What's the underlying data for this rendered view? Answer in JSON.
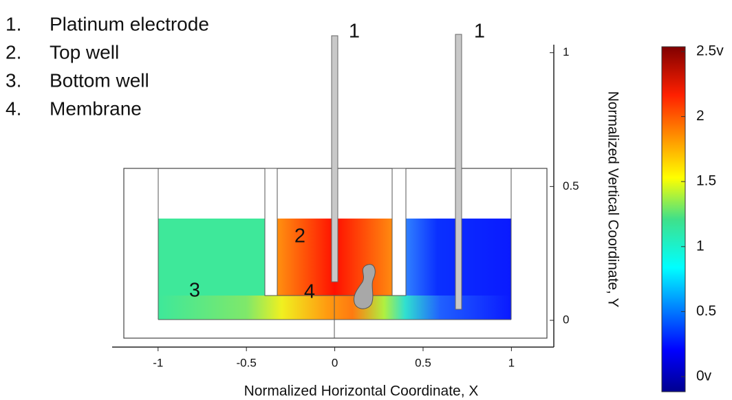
{
  "chart_data": {
    "type": "field",
    "legend_items": [
      {
        "number": "1.",
        "text": "Platinum electrode"
      },
      {
        "number": "2.",
        "text": "Top well"
      },
      {
        "number": "3.",
        "text": "Bottom well"
      },
      {
        "number": "4.",
        "text": "Membrane"
      }
    ],
    "annotations": [
      "1",
      "1",
      "2",
      "3",
      "4"
    ],
    "x_label": "Normalized Horizontal Coordinate, X",
    "y_label": "Normalized Vertical Coordinate, Y",
    "xlim": [
      -1.26,
      1.24
    ],
    "ylim": [
      -0.1,
      1.03
    ],
    "xticks": [
      -1,
      -0.5,
      0,
      0.5,
      1
    ],
    "yticks": [
      0,
      0.5,
      1
    ],
    "colorbar": {
      "lim": [
        0,
        2.5
      ],
      "ticks": [
        {
          "value": 2.5,
          "label": "2.5v"
        },
        2,
        1.5,
        1,
        0.5,
        {
          "value": 0,
          "label": "0v"
        }
      ]
    }
  }
}
